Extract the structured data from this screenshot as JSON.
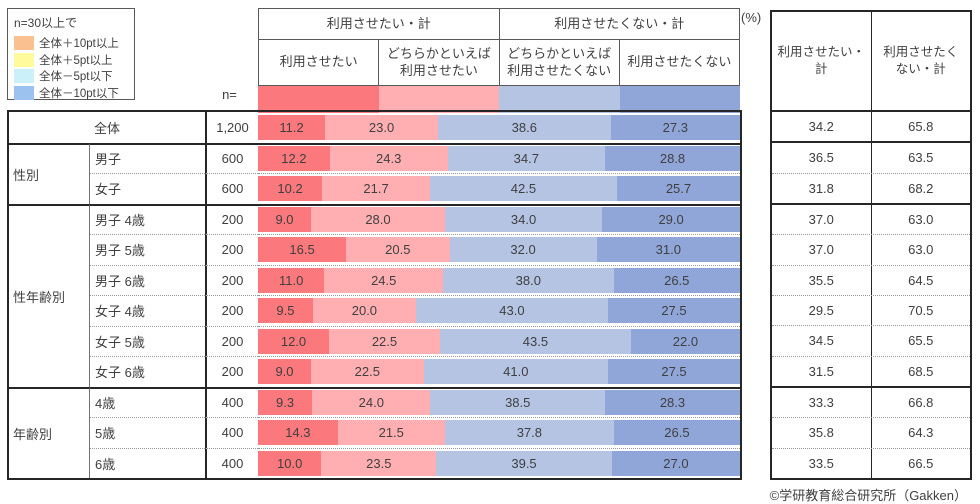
{
  "legend": {
    "title": "n=30以上で",
    "items": [
      {
        "label": "全体＋10pt以上",
        "color": "#FAC090"
      },
      {
        "label": "全体＋5pt以上",
        "color": "#FFFB9D"
      },
      {
        "label": "全体－5pt以下",
        "color": "#CBF0FA"
      },
      {
        "label": "全体－10pt以下",
        "color": "#9CC3F0"
      }
    ]
  },
  "header": {
    "n_label": "n=",
    "percent_label": "(%)",
    "group_headers": [
      "利用させたい・計",
      "利用させたくない・計"
    ],
    "sub_headers": [
      "利用させたい",
      "どちらかといえば\n利用させたい",
      "どちらかといえば\n利用させたくない",
      "利用させたくない"
    ]
  },
  "right_table": {
    "headers": [
      "利用させたい・計",
      "利用させたく\nない・計"
    ]
  },
  "colors": {
    "segments": [
      "#FB797D",
      "#FFAFB2",
      "#B6C4E4",
      "#90A6D9"
    ]
  },
  "row_groups": [
    {
      "group": "",
      "rows": [
        {
          "label": "全体",
          "n": "1,200",
          "values": [
            11.2,
            23.0,
            38.6,
            27.3
          ],
          "totals": [
            "34.2",
            "65.8"
          ]
        }
      ]
    },
    {
      "group": "性別",
      "rows": [
        {
          "label": "男子",
          "n": "600",
          "values": [
            12.2,
            24.3,
            34.7,
            28.8
          ],
          "totals": [
            "36.5",
            "63.5"
          ]
        },
        {
          "label": "女子",
          "n": "600",
          "values": [
            10.2,
            21.7,
            42.5,
            25.7
          ],
          "totals": [
            "31.8",
            "68.2"
          ]
        }
      ]
    },
    {
      "group": "性年齢別",
      "rows": [
        {
          "label": "男子 4歳",
          "n": "200",
          "values": [
            9.0,
            28.0,
            34.0,
            29.0
          ],
          "totals": [
            "37.0",
            "63.0"
          ]
        },
        {
          "label": "男子 5歳",
          "n": "200",
          "values": [
            16.5,
            20.5,
            32.0,
            31.0
          ],
          "totals": [
            "37.0",
            "63.0"
          ]
        },
        {
          "label": "男子 6歳",
          "n": "200",
          "values": [
            11.0,
            24.5,
            38.0,
            26.5
          ],
          "totals": [
            "35.5",
            "64.5"
          ]
        },
        {
          "label": "女子 4歳",
          "n": "200",
          "values": [
            9.5,
            20.0,
            43.0,
            27.5
          ],
          "totals": [
            "29.5",
            "70.5"
          ]
        },
        {
          "label": "女子 5歳",
          "n": "200",
          "values": [
            12.0,
            22.5,
            43.5,
            22.0
          ],
          "totals": [
            "34.5",
            "65.5"
          ]
        },
        {
          "label": "女子 6歳",
          "n": "200",
          "values": [
            9.0,
            22.5,
            41.0,
            27.5
          ],
          "totals": [
            "31.5",
            "68.5"
          ]
        }
      ]
    },
    {
      "group": "年齢別",
      "rows": [
        {
          "label": "4歳",
          "n": "400",
          "values": [
            9.3,
            24.0,
            38.5,
            28.3
          ],
          "totals": [
            "33.3",
            "66.8"
          ]
        },
        {
          "label": "5歳",
          "n": "400",
          "values": [
            14.3,
            21.5,
            37.8,
            26.5
          ],
          "totals": [
            "35.8",
            "64.3"
          ]
        },
        {
          "label": "6歳",
          "n": "400",
          "values": [
            10.0,
            23.5,
            39.5,
            27.0
          ],
          "totals": [
            "33.5",
            "66.5"
          ]
        }
      ]
    }
  ],
  "footer": "©学研教育総合研究所（Gakken）",
  "chart_data": {
    "type": "bar",
    "stacked": true,
    "orientation": "horizontal",
    "unit": "%",
    "xlim": [
      0,
      100
    ],
    "categories": [
      "全体",
      "男子",
      "女子",
      "男子 4歳",
      "男子 5歳",
      "男子 6歳",
      "女子 4歳",
      "女子 5歳",
      "女子 6歳",
      "4歳",
      "5歳",
      "6歳"
    ],
    "n_values": [
      1200,
      600,
      600,
      200,
      200,
      200,
      200,
      200,
      200,
      400,
      400,
      400
    ],
    "series": [
      {
        "name": "利用させたい",
        "color": "#FB797D",
        "values": [
          11.2,
          12.2,
          10.2,
          9.0,
          16.5,
          11.0,
          9.5,
          12.0,
          9.0,
          9.3,
          14.3,
          10.0
        ]
      },
      {
        "name": "どちらかといえば利用させたい",
        "color": "#FFAFB2",
        "values": [
          23.0,
          24.3,
          21.7,
          28.0,
          20.5,
          24.5,
          20.0,
          22.5,
          22.5,
          24.0,
          21.5,
          23.5
        ]
      },
      {
        "name": "どちらかといえば利用させたくない",
        "color": "#B6C4E4",
        "values": [
          38.6,
          34.7,
          42.5,
          34.0,
          32.0,
          38.0,
          43.0,
          43.5,
          41.0,
          38.5,
          37.8,
          39.5
        ]
      },
      {
        "name": "利用させたくない",
        "color": "#90A6D9",
        "values": [
          27.3,
          28.8,
          25.7,
          29.0,
          31.0,
          26.5,
          27.5,
          22.0,
          27.5,
          28.3,
          26.5,
          27.0
        ]
      }
    ],
    "totals": [
      {
        "name": "利用させたい・計",
        "values": [
          34.2,
          36.5,
          31.8,
          37.0,
          37.0,
          35.5,
          29.5,
          34.5,
          31.5,
          33.3,
          35.8,
          33.5
        ]
      },
      {
        "name": "利用させたくない・計",
        "values": [
          65.8,
          63.5,
          68.2,
          63.0,
          63.0,
          64.5,
          70.5,
          65.5,
          68.5,
          66.8,
          64.3,
          66.5
        ]
      }
    ],
    "legend_position": "top-left",
    "grid": false
  }
}
